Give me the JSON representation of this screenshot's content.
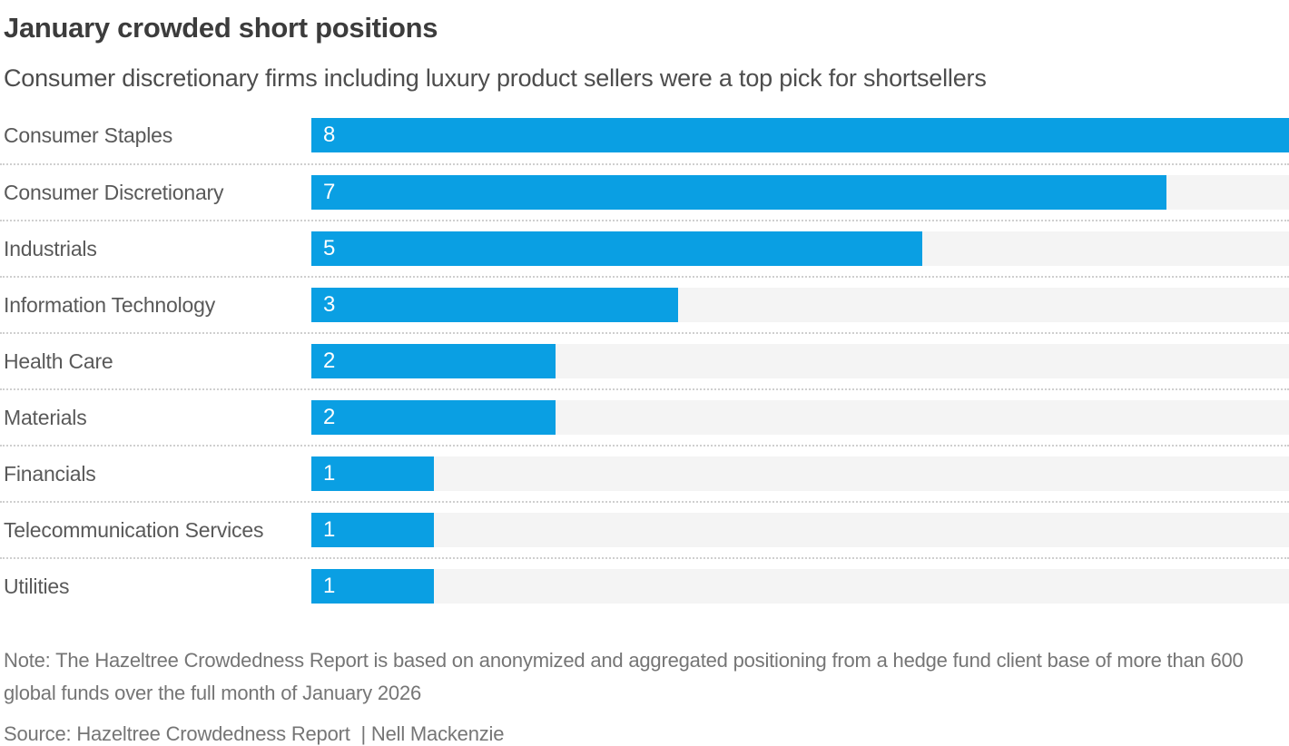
{
  "header": {
    "title": "January crowded short positions",
    "subtitle": "Consumer discretionary firms including luxury product sellers were a top pick for shortsellers"
  },
  "chart_data": {
    "type": "bar",
    "orientation": "horizontal",
    "categories": [
      "Consumer Staples",
      "Consumer Discretionary",
      "Industrials",
      "Information Technology",
      "Health Care",
      "Materials",
      "Financials",
      "Telecommunication Services",
      "Utilities"
    ],
    "values": [
      8,
      7,
      5,
      3,
      2,
      2,
      1,
      1,
      1
    ],
    "xlim": [
      0,
      8
    ],
    "title": "January crowded short positions",
    "xlabel": "",
    "ylabel": "",
    "legend": "none",
    "grid": "dotted-row-separators",
    "value_labels": "inside-bar-left, white",
    "bar_color": "#0a9fe3",
    "track_color": "#f4f4f4",
    "separator_color": "#cfcfcf"
  },
  "footer": {
    "note": "Note: The Hazeltree Crowdedness Report is based on anonymized and aggregated positioning from a hedge fund client base of more than 600 global funds over the full month of January 2026",
    "source": "Source: Hazeltree Crowdedness Report  | Nell Mackenzie"
  }
}
